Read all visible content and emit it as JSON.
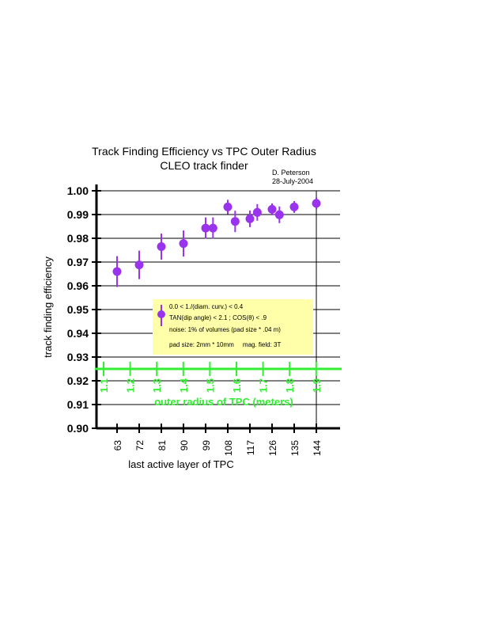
{
  "chart_data": {
    "type": "scatter",
    "title": "Track Finding Efficiency vs TPC Outer Radius",
    "subtitle": "CLEO track finder",
    "author": "D. Peterson",
    "date": "28-July-2004",
    "xlabel": "last active layer of TPC",
    "ylabel": "track finding efficiency",
    "secondary_xlabel": "outer radius of TPC (meters)",
    "ylim": [
      0.9,
      1.0
    ],
    "xlim": [
      58,
      146
    ],
    "y_ticks": [
      "1.00",
      "0.99",
      "0.98",
      "0.97",
      "0.96",
      "0.95",
      "0.94",
      "0.93",
      "0.92",
      "0.91",
      "0.90"
    ],
    "x_ticks": [
      "63",
      "72",
      "81",
      "90",
      "99",
      "108",
      "117",
      "126",
      "135",
      "144"
    ],
    "secondary_ticks": [
      "1.1",
      "1.2",
      "1.3",
      "1.4",
      "1.5",
      "1.6",
      "1.7",
      "1.8",
      "1.9"
    ],
    "grid": true,
    "marker_color": "#9933ee",
    "secondary_axis_color": "#33ee33",
    "legend": {
      "placement": "center",
      "background": "#ffffaa",
      "lines": [
        "0.0 < 1./(diam. curv.) < 0.4",
        "TAN(dip angle) < 2.1 ; COS(θ) < .9",
        "noise: 1% of volumes (pad size * .04 m)",
        "pad size: 2mm * 10mm     mag. field: 3T"
      ]
    },
    "series": [
      {
        "x": [
          63,
          72,
          81,
          90,
          99,
          102,
          108,
          111,
          117,
          120,
          126,
          129,
          135,
          144
        ],
        "y": [
          0.966,
          0.9688,
          0.9765,
          0.9778,
          0.9843,
          0.9843,
          0.9932,
          0.9871,
          0.9882,
          0.9909,
          0.9922,
          0.9899,
          0.9932,
          0.9947
        ],
        "err": [
          0.0065,
          0.006,
          0.0055,
          0.0055,
          0.0045,
          0.0045,
          0.003,
          0.0045,
          0.0035,
          0.0035,
          0.0025,
          0.0035,
          0.0025,
          0.0025
        ]
      }
    ]
  }
}
